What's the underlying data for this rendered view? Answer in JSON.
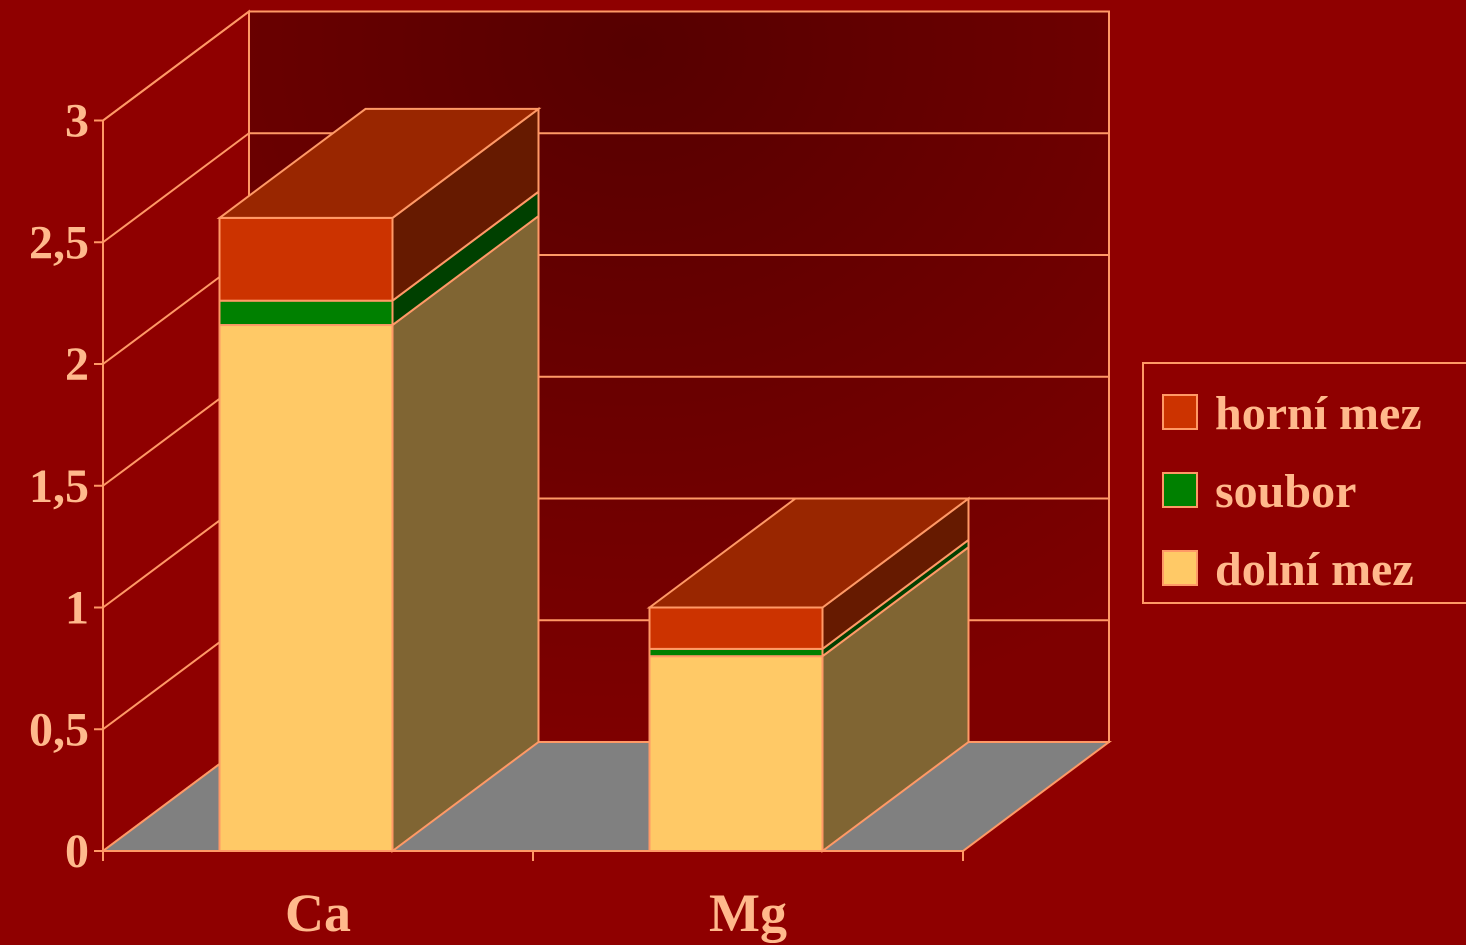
{
  "chart_data": {
    "type": "bar",
    "variant": "stacked-3d",
    "categories": [
      "Ca",
      "Mg"
    ],
    "series": [
      {
        "name": "dolní mez",
        "values": [
          2.16,
          0.8
        ],
        "color": "#ffc966"
      },
      {
        "name": "soubor",
        "values": [
          0.1,
          0.03
        ],
        "color": "#008000"
      },
      {
        "name": "horní mez",
        "values": [
          0.34,
          0.17
        ],
        "color": "#cc3300"
      }
    ],
    "ylim": [
      0,
      3
    ],
    "yticks": [
      0,
      0.5,
      1,
      1.5,
      2,
      2.5,
      3
    ],
    "ytick_labels": [
      "0",
      "0,5",
      "1",
      "1,5",
      "2",
      "2,5",
      "3"
    ],
    "grid": true,
    "legend_position": "right",
    "legend_order": [
      "horní mez",
      "soubor",
      "dolní mez"
    ],
    "colors": {
      "background": "#8f0000",
      "wall": "#6b0000",
      "floor": "#808080",
      "lines": "#ff9966",
      "text": "#ffb98c"
    }
  }
}
